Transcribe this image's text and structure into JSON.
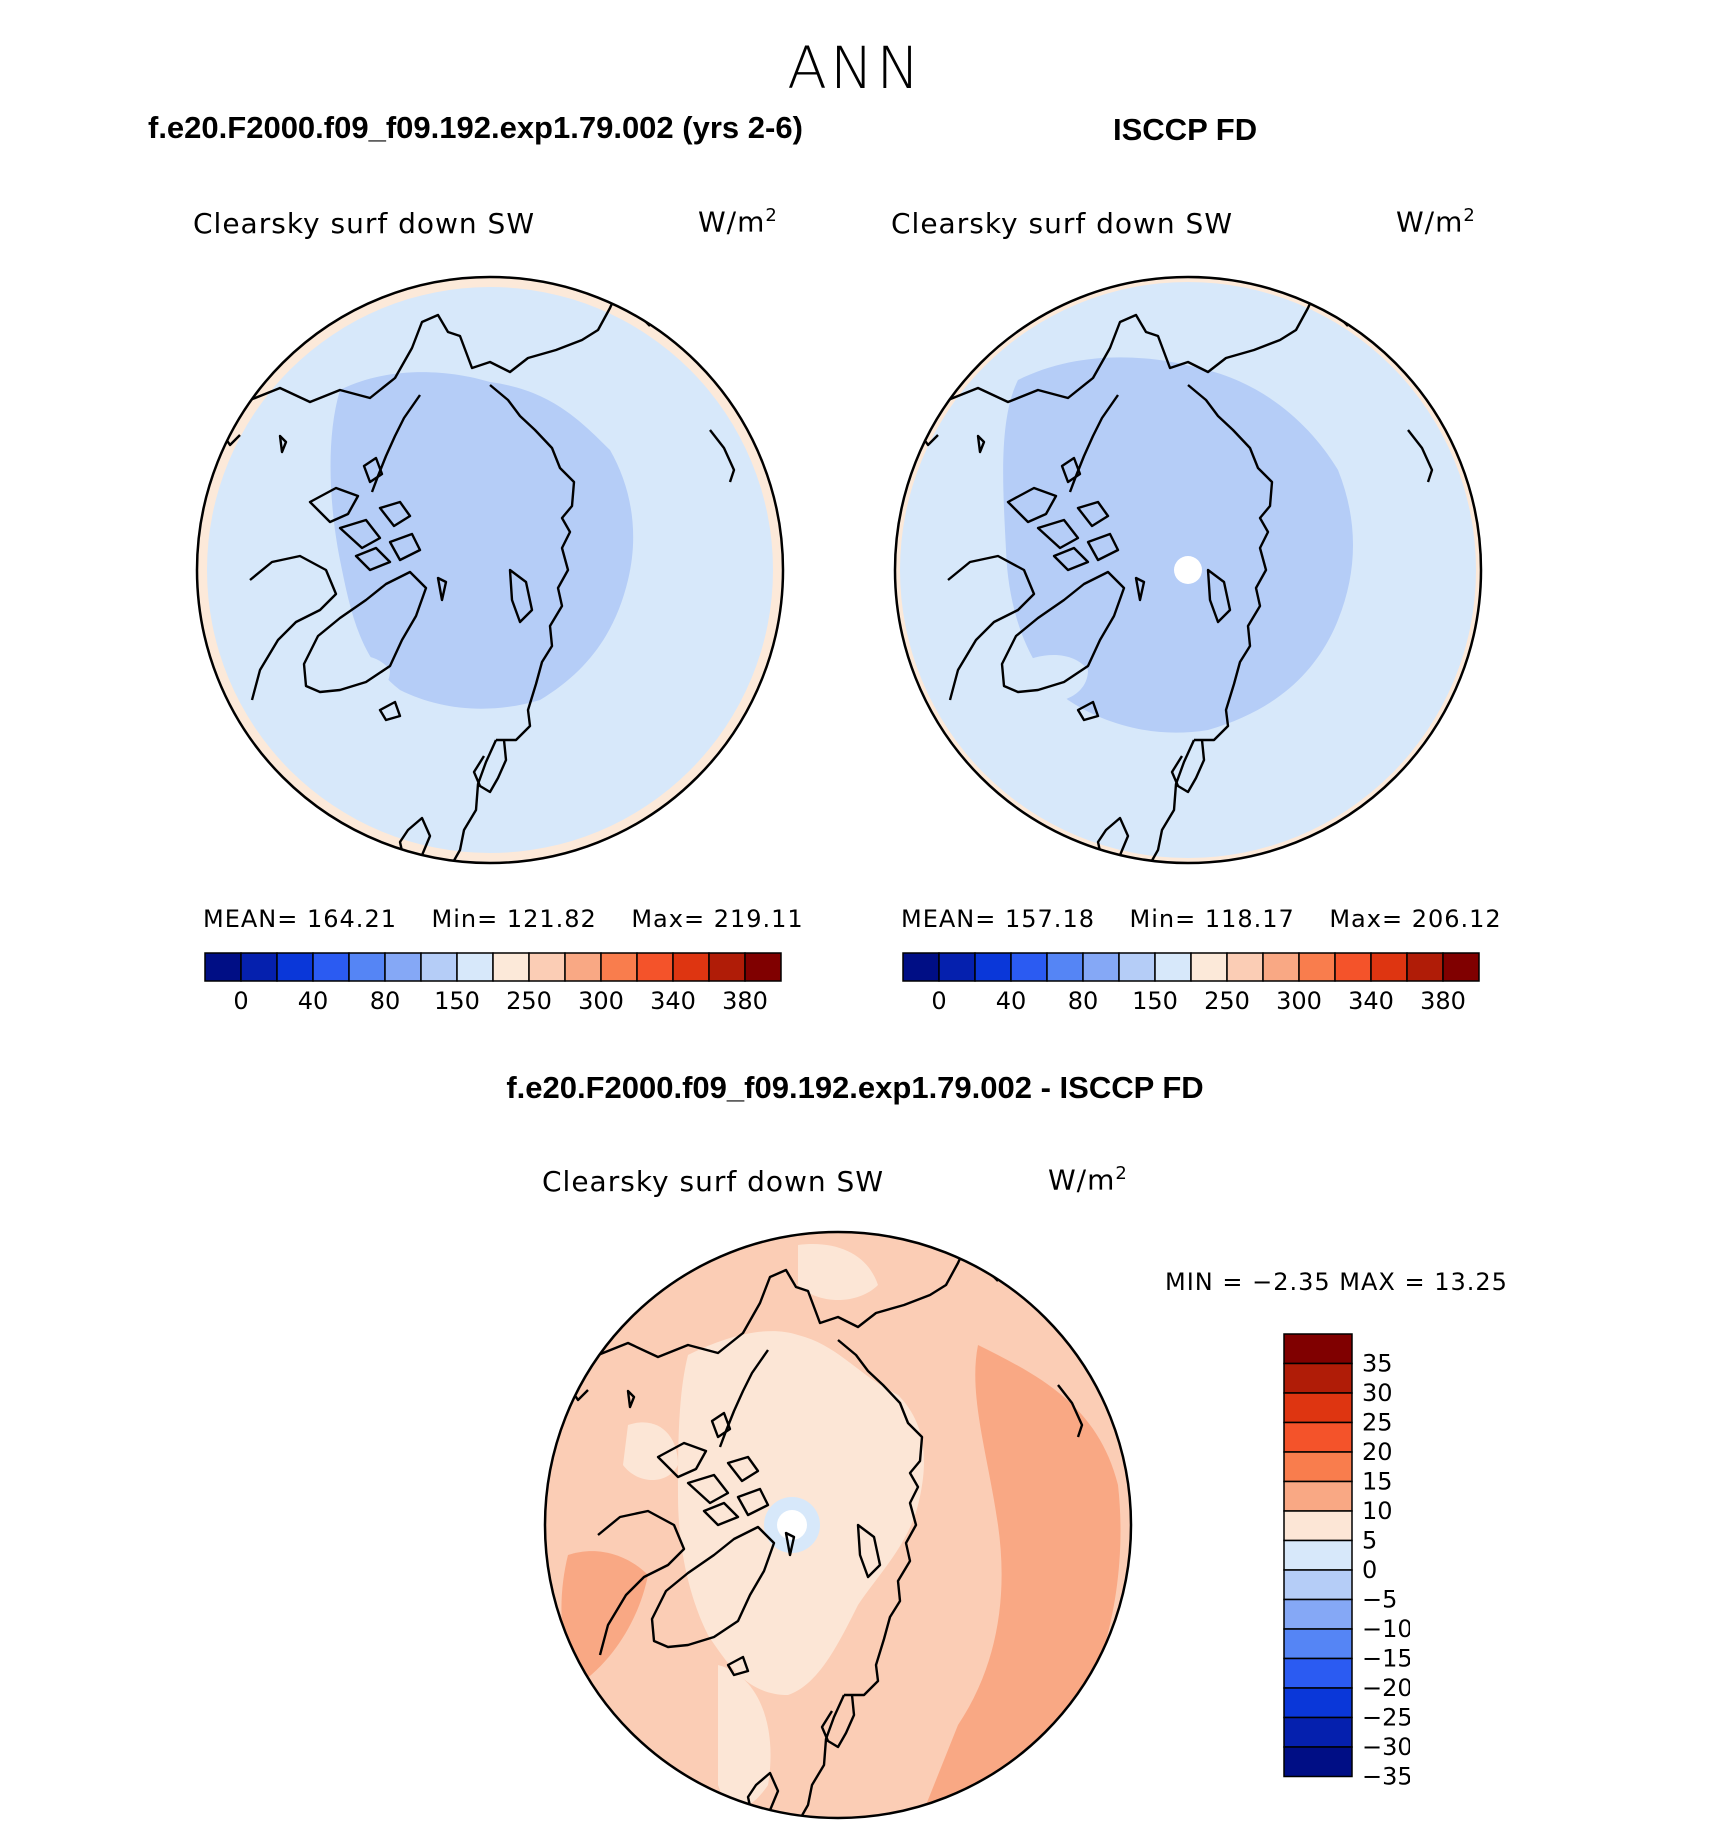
{
  "season": "ANN",
  "panels": [
    {
      "id": "model",
      "title": "f.e20.F2000.f09_f09.192.exp1.79.002 (yrs 2-6)",
      "variable": "Clearsky surf down SW",
      "units_base": "W/m",
      "units_exp": "2",
      "stats": {
        "mean_label": "MEAN=",
        "mean": "164.21",
        "min_label": "Min=",
        "min": "121.82",
        "max_label": "Max=",
        "max": "219.11"
      }
    },
    {
      "id": "obs",
      "title": "ISCCP FD",
      "variable": "Clearsky surf down SW",
      "units_base": "W/m",
      "units_exp": "2",
      "stats": {
        "mean_label": "MEAN=",
        "mean": "157.18",
        "min_label": "Min=",
        "min": "118.17",
        "max_label": "Max=",
        "max": "206.12"
      }
    }
  ],
  "difference": {
    "title": "f.e20.F2000.f09_f09.192.exp1.79.002 - ISCCP FD",
    "variable": "Clearsky surf down SW",
    "units_base": "W/m",
    "units_exp": "2",
    "stats_text": "MIN =  −2.35 MAX =  13.25"
  },
  "colorbar_abs": {
    "colors": [
      "#000e85",
      "#0520ae",
      "#0a37d9",
      "#2b5bf2",
      "#5585f5",
      "#85a8f6",
      "#b5cdf7",
      "#d7e8fa",
      "#fce9d9",
      "#fbcdb5",
      "#f9a884",
      "#f97d4d",
      "#f4532a",
      "#de3511",
      "#b01c07",
      "#800000"
    ],
    "labels": [
      "0",
      "40",
      "80",
      "150",
      "250",
      "300",
      "340",
      "380"
    ]
  },
  "colorbar_diff": {
    "colors": [
      "#800000",
      "#b01c07",
      "#de3511",
      "#f4532a",
      "#f97d4d",
      "#f9a884",
      "#fce6d6",
      "#d7e8fa",
      "#b5cdf7",
      "#85a8f6",
      "#5585f5",
      "#2b5bf2",
      "#0a37d9",
      "#0520ae",
      "#000e85"
    ],
    "labels": [
      "35",
      "30",
      "25",
      "20",
      "15",
      "10",
      "5",
      "0",
      "−5",
      "−10",
      "−15",
      "−20",
      "−25",
      "−30",
      "−35"
    ]
  },
  "map_colors": {
    "ring_outer": "#fce9d9",
    "bg_abs": "#d7e8fa",
    "inner_abs": "#b5cdf7",
    "bg_diff": "#fbcdb5",
    "mid_diff": "#fce6d6",
    "hot_diff": "#f9a884",
    "pole_neg": "#d7e8fa",
    "missing": "#ffffff"
  }
}
